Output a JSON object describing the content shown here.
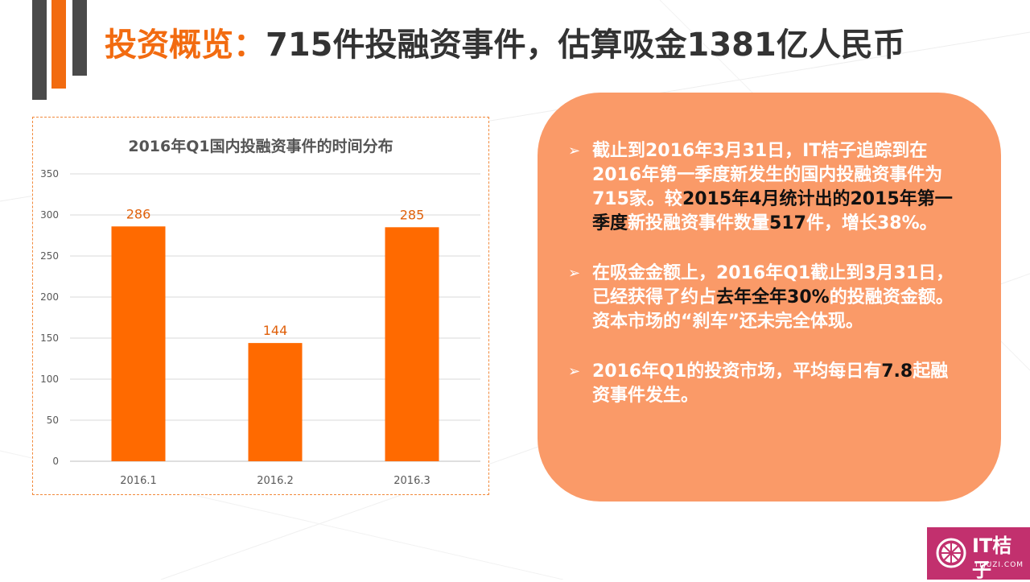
{
  "title": {
    "prefix": "投资概览：",
    "main": "715件投融资事件，估算吸金1381亿人民币"
  },
  "colors": {
    "accent": "#f26b10",
    "card": "#fa9a68",
    "dark": "#4a4a4a",
    "logo_bg": "#c2306e"
  },
  "chart_data": {
    "type": "bar",
    "title": "2016年Q1国内投融资事件的时间分布",
    "categories": [
      "2016.1",
      "2016.2",
      "2016.3"
    ],
    "values": [
      286,
      144,
      285
    ],
    "ylim": [
      0,
      350
    ],
    "yticks": [
      0,
      50,
      100,
      150,
      200,
      250,
      300,
      350
    ],
    "grid": true,
    "bar_color": "#ff6a00",
    "label_color": "#e0600a"
  },
  "bullets": [
    {
      "parts": [
        {
          "text": "截止到2016年3月31日，IT桔子追踪到在2016年第一季度新发生的国内投融资事件为715家。较",
          "hl": false
        },
        {
          "text": "2015年4月统计出的2015年第一季度",
          "hl": true
        },
        {
          "text": "新投融资事件数量",
          "hl": false
        },
        {
          "text": "517",
          "hl": true
        },
        {
          "text": "件，增长38%。",
          "hl": false
        }
      ]
    },
    {
      "parts": [
        {
          "text": "在吸金金额上，2016年Q1截止到3月31日，已经获得了约占",
          "hl": false
        },
        {
          "text": "去年全年30%",
          "hl": true
        },
        {
          "text": "的投融资金额。资本市场的“刹车”还未完全体现。",
          "hl": false
        }
      ]
    },
    {
      "parts": [
        {
          "text": "2016年Q1的投资市场，平均每日有",
          "hl": false
        },
        {
          "text": "7.8",
          "hl": true
        },
        {
          "text": "起融资事件发生。",
          "hl": false
        }
      ]
    }
  ],
  "logo": {
    "name": "IT桔子",
    "url": "ITJUZI.COM"
  },
  "icons": {
    "bullet": "arrowhead-icon",
    "logo_mark": "orange-slice-icon"
  }
}
